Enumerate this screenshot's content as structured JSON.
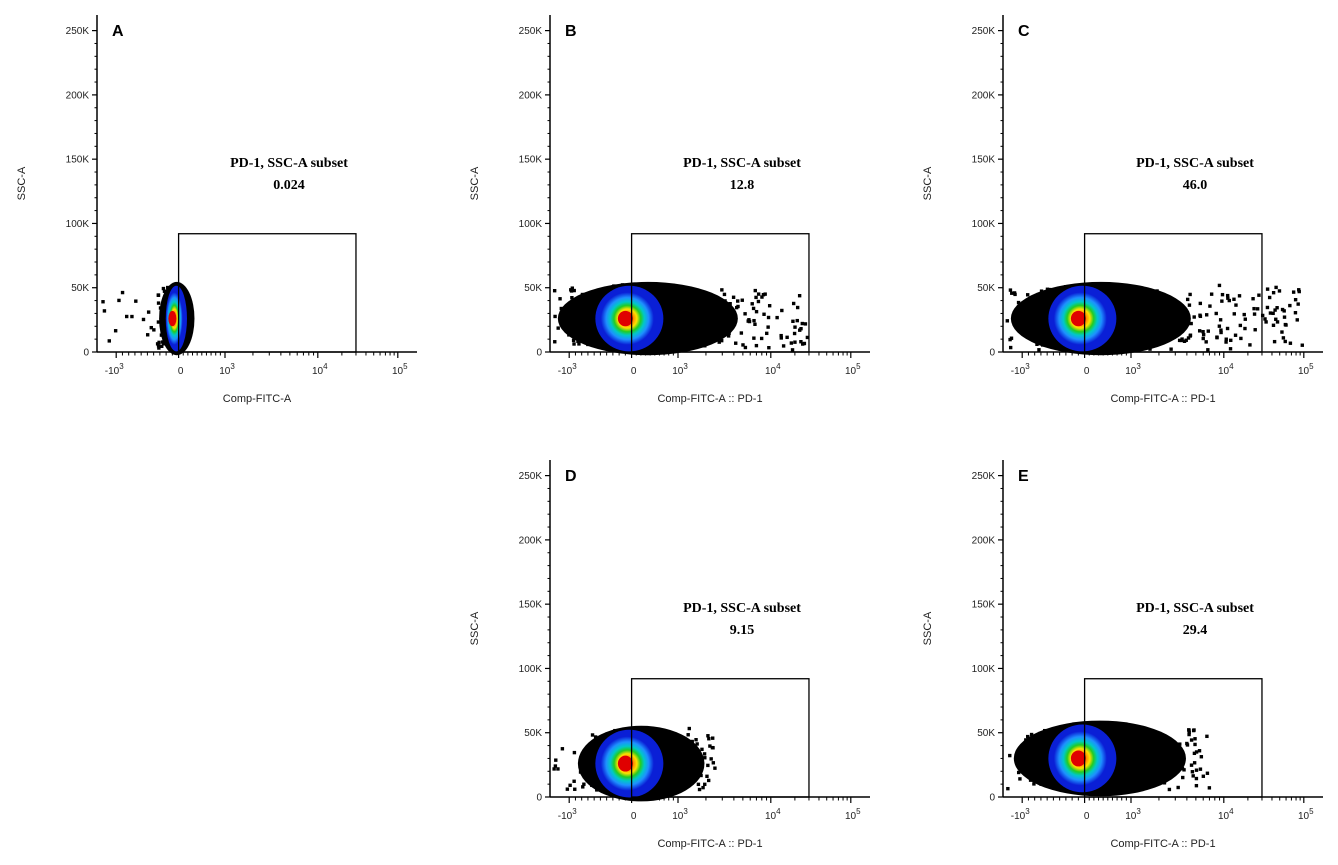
{
  "chart_data": [
    {
      "type": "scatter",
      "panel_label": "A",
      "xlabel": "Comp-FITC-A",
      "ylabel": "SSC-A",
      "x_scale": "biexponential",
      "x_ticks": [
        "-10^3",
        "0",
        "10^3",
        "10^4",
        "10^5"
      ],
      "y_ticks": [
        "0",
        "50K",
        "100K",
        "150K",
        "200K",
        "250K"
      ],
      "ylim": [
        0,
        262144
      ],
      "gate": {
        "name": "PD-1, SSC-A subset",
        "percent": "0.024",
        "x_range": [
          0,
          30000
        ],
        "y_range": [
          0,
          92000
        ]
      },
      "population": {
        "center_x": -100,
        "center_y": 26000,
        "x_max": 10,
        "y_max": 60000
      }
    },
    {
      "type": "scatter",
      "panel_label": "B",
      "xlabel": "Comp-FITC-A :: PD-1",
      "ylabel": "SSC-A",
      "x_scale": "biexponential",
      "x_ticks": [
        "-10^3",
        "0",
        "10^3",
        "10^4",
        "10^5"
      ],
      "y_ticks": [
        "0",
        "50K",
        "100K",
        "150K",
        "200K",
        "250K"
      ],
      "ylim": [
        0,
        262144
      ],
      "gate": {
        "name": "PD-1, SSC-A subset",
        "percent": "12.8",
        "x_range": [
          0,
          30000
        ],
        "y_range": [
          0,
          92000
        ]
      },
      "population": {
        "center_x": -100,
        "center_y": 26000,
        "x_max": 30000,
        "y_max": 60000
      }
    },
    {
      "type": "scatter",
      "panel_label": "C",
      "xlabel": "Comp-FITC-A :: PD-1",
      "ylabel": "SSC-A",
      "x_scale": "biexponential",
      "x_ticks": [
        "-10^3",
        "0",
        "10^3",
        "10^4",
        "10^5"
      ],
      "y_ticks": [
        "0",
        "50K",
        "100K",
        "150K",
        "200K",
        "250K"
      ],
      "ylim": [
        0,
        262144
      ],
      "gate": {
        "name": "PD-1, SSC-A subset",
        "percent": "46.0",
        "x_range": [
          0,
          30000
        ],
        "y_range": [
          0,
          92000
        ]
      },
      "population": {
        "center_x": -100,
        "center_y": 26000,
        "x_max": 100000,
        "y_max": 60000
      }
    },
    {
      "type": "scatter",
      "panel_label": "D",
      "xlabel": "Comp-FITC-A :: PD-1",
      "ylabel": "SSC-A",
      "x_scale": "biexponential",
      "x_ticks": [
        "-10^3",
        "0",
        "10^3",
        "10^4",
        "10^5"
      ],
      "y_ticks": [
        "0",
        "50K",
        "100K",
        "150K",
        "200K",
        "250K"
      ],
      "ylim": [
        0,
        262144
      ],
      "gate": {
        "name": "PD-1, SSC-A subset",
        "percent": "9.15",
        "x_range": [
          0,
          30000
        ],
        "y_range": [
          0,
          92000
        ]
      },
      "population": {
        "center_x": -100,
        "center_y": 26000,
        "x_max": 2500,
        "y_max": 62000
      }
    },
    {
      "type": "scatter",
      "panel_label": "E",
      "xlabel": "Comp-FITC-A :: PD-1",
      "ylabel": "SSC-A",
      "x_scale": "biexponential",
      "x_ticks": [
        "-10^3",
        "0",
        "10^3",
        "10^4",
        "10^5"
      ],
      "y_ticks": [
        "0",
        "50K",
        "100K",
        "150K",
        "200K",
        "250K"
      ],
      "ylim": [
        0,
        262144
      ],
      "gate": {
        "name": "PD-1, SSC-A subset",
        "percent": "29.4",
        "x_range": [
          0,
          30000
        ],
        "y_range": [
          0,
          92000
        ]
      },
      "population": {
        "center_x": -100,
        "center_y": 30000,
        "x_max": 7000,
        "y_max": 62000
      }
    }
  ],
  "colors": {
    "density_low": "#0a1fd6",
    "density_mid_low": "#1e90ff",
    "density_mid": "#00c8c8",
    "density_mid_high": "#22cc22",
    "density_high_mid": "#ffe000",
    "density_high": "#ff8800",
    "density_peak": "#e00000",
    "outlier": "#000000",
    "axis": "#000000"
  }
}
